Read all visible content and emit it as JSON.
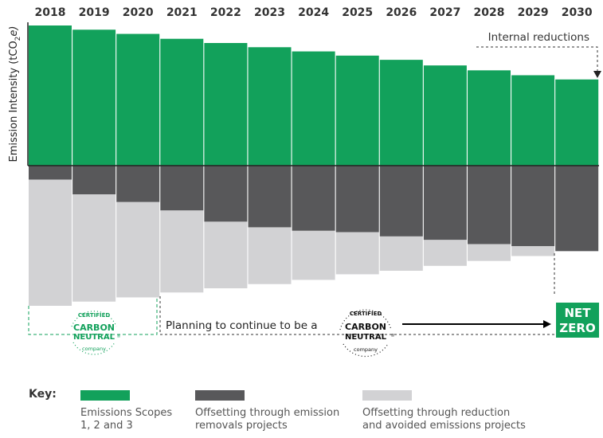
{
  "colors": {
    "scope": "#12a15b",
    "removals": "#58585a",
    "avoided": "#d2d2d4",
    "axis": "#222222",
    "dash": "#333333"
  },
  "chart_data": {
    "type": "bar",
    "categories": [
      "2018",
      "2019",
      "2020",
      "2021",
      "2022",
      "2023",
      "2024",
      "2025",
      "2026",
      "2027",
      "2028",
      "2029",
      "2030"
    ],
    "ylabel_main": "Emission Intensity (tCO",
    "ylabel_sub": "2",
    "ylabel_end": "e)",
    "series": [
      {
        "name": "Emissions Scopes 1, 2 and 3",
        "values": [
          100,
          97,
          94,
          90.5,
          87.5,
          84.5,
          81.5,
          78.5,
          75.5,
          71.5,
          68,
          64.5,
          61.5
        ]
      },
      {
        "name": "Offsetting through emission removals projects",
        "values": [
          10,
          20.5,
          26,
          32,
          40,
          44,
          46.5,
          47.5,
          50.5,
          53,
          56,
          57.5,
          61
        ]
      },
      {
        "name": "Offsetting through reduction and avoided emissions projects",
        "values": [
          90,
          76.5,
          68,
          58.5,
          47.5,
          40.5,
          35,
          30,
          24.5,
          18.5,
          12,
          7,
          0
        ]
      }
    ],
    "annotations": {
      "internal_reductions": "Internal reductions",
      "planning": "Planning to continue to be a",
      "net_zero_line1": "NET",
      "net_zero_line2": "ZERO"
    }
  },
  "badges": {
    "top": "CERTIFIED",
    "line1": "CARBON",
    "line2": "NEUTRAL",
    "reg": "®",
    "bottom": "company"
  },
  "key": {
    "title": "Key:",
    "items": [
      {
        "line1": "Emissions Scopes",
        "line2": "1, 2 and 3"
      },
      {
        "line1": "Offsetting through emission",
        "line2": "removals projects"
      },
      {
        "line1": "Offsetting through reduction",
        "line2": "and avoided emissions projects"
      }
    ]
  }
}
